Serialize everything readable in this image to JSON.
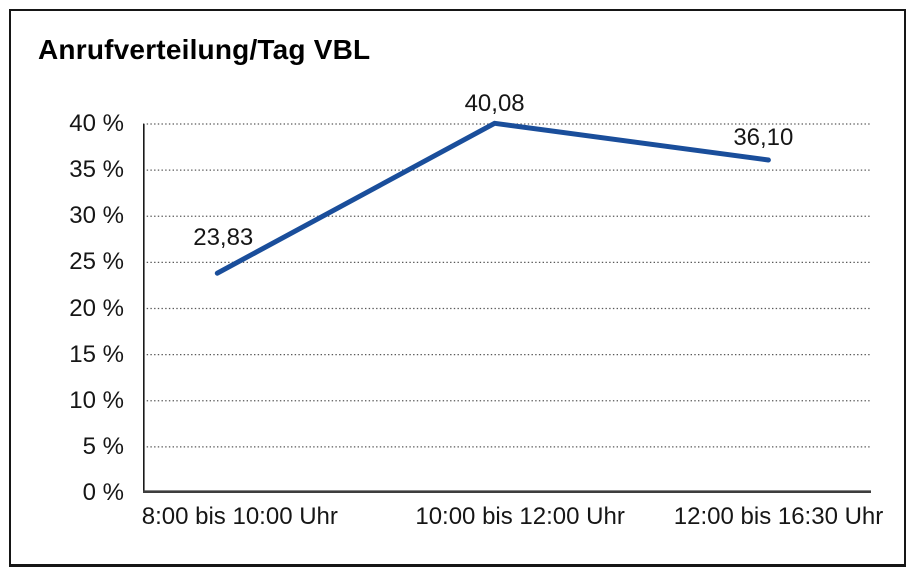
{
  "chart_data": {
    "type": "line",
    "title": "Anrufverteilung/Tag VBL",
    "categories": [
      "8:00 bis 10:00 Uhr",
      "10:00 bis 12:00 Uhr",
      "12:00 bis 16:30 Uhr"
    ],
    "values": [
      23.83,
      40.08,
      36.1
    ],
    "point_labels": [
      "23,83",
      "40,08",
      "36,10"
    ],
    "y_tick_labels": [
      "0 %",
      "5 %",
      "10 %",
      "15 %",
      "20 %",
      "25 %",
      "30 %",
      "35 %",
      "40 %"
    ],
    "ylim": [
      0,
      40
    ],
    "y_tick_step": 5,
    "xlabel": "",
    "ylabel": "",
    "grid": "horizontal-dotted",
    "legend": "none",
    "line_color": "#1a4e9b",
    "axis_color": "#1a1a1a",
    "x_axis_color": "#3d3d3d",
    "gridline_color": "#595959",
    "frame_border_color": "#161616"
  }
}
